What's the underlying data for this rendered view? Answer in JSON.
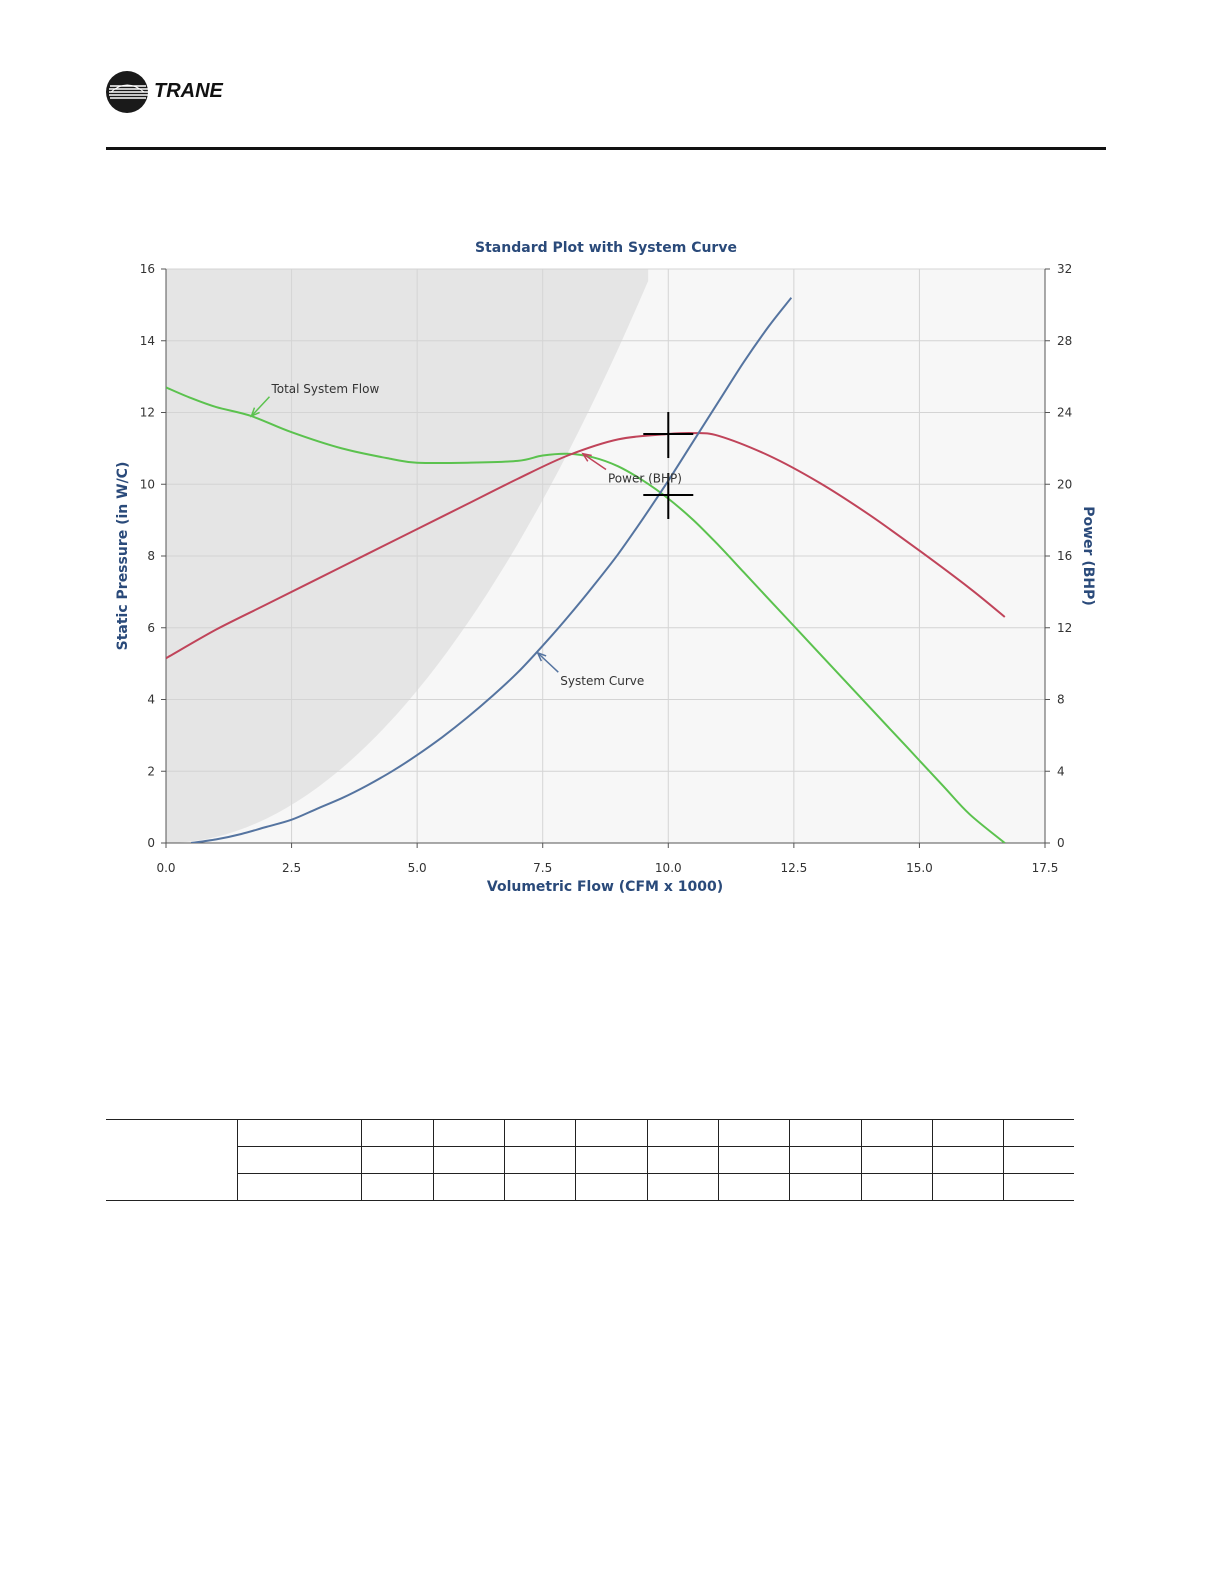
{
  "brand": {
    "name": "TRANE"
  },
  "chart_data": {
    "type": "line",
    "title": "Standard Plot with System Curve",
    "xlabel": "Volumetric Flow (CFM x 1000)",
    "ylabel_left": "Static Pressure (in W/C)",
    "ylabel_right": "Power (BHP)",
    "xlim": [
      0,
      17.5
    ],
    "ylim_left": [
      0,
      16
    ],
    "ylim_right": [
      0,
      32
    ],
    "x_ticks": [
      "0.0",
      "2.5",
      "5.0",
      "7.5",
      "10.0",
      "12.5",
      "15.0",
      "17.5"
    ],
    "y_ticks_left": [
      "0",
      "2",
      "4",
      "6",
      "8",
      "10",
      "12",
      "14",
      "16"
    ],
    "y_ticks_right": [
      "0",
      "4",
      "8",
      "12",
      "16",
      "20",
      "24",
      "28",
      "32"
    ],
    "grid": true,
    "series": [
      {
        "name": "Total System Flow",
        "axis": "left",
        "color": "#5bc24e",
        "x": [
          0,
          0.5,
          1,
          1.7,
          2.5,
          3.5,
          4.5,
          5,
          6,
          7,
          7.5,
          8,
          8.5,
          9,
          9.5,
          10,
          10.5,
          11,
          11.5,
          12,
          12.5,
          13,
          13.5,
          14,
          14.5,
          15,
          15.5,
          16,
          16.7
        ],
        "y": [
          12.7,
          12.4,
          12.15,
          11.9,
          11.45,
          11.0,
          10.7,
          10.6,
          10.6,
          10.65,
          10.8,
          10.85,
          10.75,
          10.5,
          10.1,
          9.6,
          9.0,
          8.3,
          7.55,
          6.8,
          6.05,
          5.3,
          4.55,
          3.8,
          3.05,
          2.3,
          1.55,
          0.8,
          0.0
        ]
      },
      {
        "name": "Power (BHP)",
        "axis": "right",
        "color": "#c0445a",
        "x": [
          0,
          1,
          2,
          3,
          4,
          5,
          6,
          7,
          8,
          9,
          10,
          10.5,
          11,
          12,
          13,
          14,
          15,
          16,
          16.7
        ],
        "y": [
          10.3,
          11.9,
          13.3,
          14.7,
          16.1,
          17.5,
          18.9,
          20.3,
          21.6,
          22.5,
          22.8,
          22.85,
          22.7,
          21.6,
          20.1,
          18.3,
          16.3,
          14.2,
          12.6
        ]
      },
      {
        "name": "System Curve",
        "axis": "left",
        "color": "#5574a0",
        "x": [
          0.5,
          1,
          1.5,
          2,
          2.5,
          3,
          3.5,
          4,
          4.5,
          5,
          5.5,
          6,
          6.5,
          7,
          7.5,
          8,
          8.5,
          9,
          9.5,
          10,
          10.5,
          11,
          11.5,
          12,
          12.45
        ],
        "y": [
          0.0,
          0.1,
          0.25,
          0.45,
          0.65,
          0.95,
          1.25,
          1.6,
          2.0,
          2.45,
          2.95,
          3.5,
          4.1,
          4.75,
          5.5,
          6.3,
          7.15,
          8.05,
          9.05,
          10.1,
          11.2,
          12.3,
          13.4,
          14.4,
          15.2
        ]
      }
    ],
    "annotations": [
      {
        "text": "Total System Flow",
        "x": 2.1,
        "y": 12.55,
        "target_x": 1.7,
        "target_y": 11.9
      },
      {
        "text": "Power (BHP)",
        "x": 8.8,
        "y": 10.05,
        "target_x": 8.3,
        "target_y": 10.85
      },
      {
        "text": "System Curve",
        "x": 7.85,
        "y": 4.4,
        "target_x": 7.4,
        "target_y": 5.3
      }
    ],
    "operating_points": [
      {
        "series": "Total System Flow",
        "x": 10.0,
        "y": 9.7
      },
      {
        "series": "Power (BHP)",
        "x": 10.0,
        "y": 22.8
      }
    ],
    "unstable_region": {
      "fill": "#e5e5e5"
    }
  },
  "table": {
    "rows": 3,
    "columns": 12
  }
}
